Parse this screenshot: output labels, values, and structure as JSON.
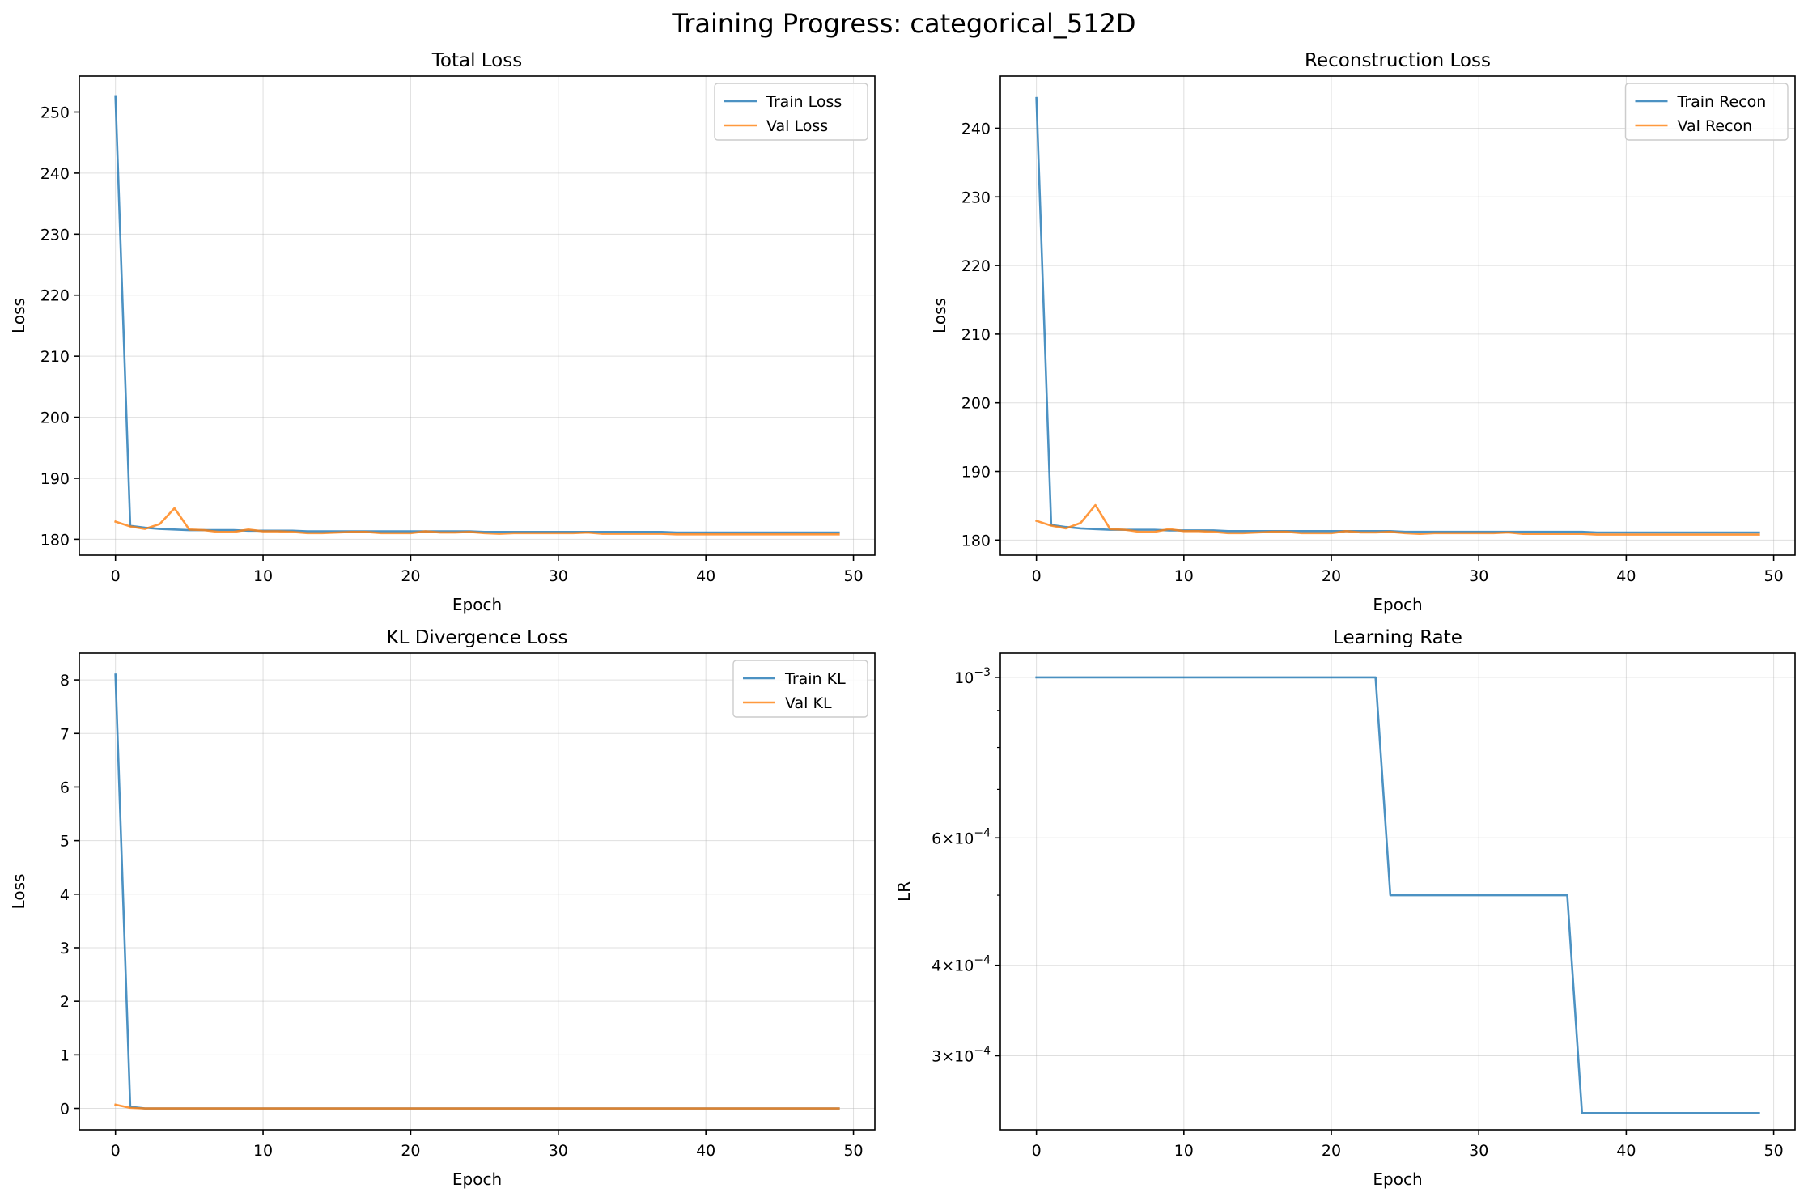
{
  "figure": {
    "title": "Training Progress: categorical_512D"
  },
  "colors": {
    "train": "#1f77b4",
    "val": "#ff7f0e",
    "grid": "#b0b0b0",
    "axis": "#000000"
  },
  "chart_data": [
    {
      "id": "total",
      "type": "line",
      "title": "Total Loss",
      "xlabel": "Epoch",
      "ylabel": "Loss",
      "xlim": [
        -2.45,
        51.45
      ],
      "ylim": [
        177.4,
        255.9
      ],
      "xticks": [
        0,
        10,
        20,
        30,
        40,
        50
      ],
      "yticks": [
        180,
        190,
        200,
        210,
        220,
        230,
        240,
        250
      ],
      "grid": true,
      "legend": "top-right",
      "series": [
        {
          "name": "Train Loss",
          "color": "#1f77b4",
          "x": [
            0,
            1,
            2,
            3,
            4,
            5,
            6,
            7,
            8,
            9,
            10,
            11,
            12,
            13,
            14,
            15,
            16,
            17,
            18,
            19,
            20,
            21,
            22,
            23,
            24,
            25,
            26,
            27,
            28,
            29,
            30,
            31,
            32,
            33,
            34,
            35,
            36,
            37,
            38,
            39,
            40,
            41,
            42,
            43,
            44,
            45,
            46,
            47,
            48,
            49
          ],
          "y": [
            252.6,
            182.2,
            181.9,
            181.7,
            181.6,
            181.5,
            181.5,
            181.5,
            181.5,
            181.4,
            181.4,
            181.4,
            181.4,
            181.3,
            181.3,
            181.3,
            181.3,
            181.3,
            181.3,
            181.3,
            181.3,
            181.3,
            181.3,
            181.3,
            181.3,
            181.2,
            181.2,
            181.2,
            181.2,
            181.2,
            181.2,
            181.2,
            181.2,
            181.2,
            181.2,
            181.2,
            181.2,
            181.2,
            181.1,
            181.1,
            181.1,
            181.1,
            181.1,
            181.1,
            181.1,
            181.1,
            181.1,
            181.1,
            181.1,
            181.1
          ]
        },
        {
          "name": "Val Loss",
          "color": "#ff7f0e",
          "x": [
            0,
            1,
            2,
            3,
            4,
            5,
            6,
            7,
            8,
            9,
            10,
            11,
            12,
            13,
            14,
            15,
            16,
            17,
            18,
            19,
            20,
            21,
            22,
            23,
            24,
            25,
            26,
            27,
            28,
            29,
            30,
            31,
            32,
            33,
            34,
            35,
            36,
            37,
            38,
            39,
            40,
            41,
            42,
            43,
            44,
            45,
            46,
            47,
            48,
            49
          ],
          "y": [
            182.9,
            182.1,
            181.7,
            182.5,
            185.1,
            181.6,
            181.5,
            181.2,
            181.2,
            181.6,
            181.3,
            181.3,
            181.2,
            181.0,
            181.0,
            181.1,
            181.2,
            181.2,
            181.0,
            181.0,
            181.0,
            181.3,
            181.1,
            181.1,
            181.2,
            181.0,
            180.9,
            181.0,
            181.0,
            181.0,
            181.0,
            181.0,
            181.1,
            180.9,
            180.9,
            180.9,
            180.9,
            180.9,
            180.8,
            180.8,
            180.8,
            180.8,
            180.8,
            180.8,
            180.8,
            180.8,
            180.8,
            180.8,
            180.8,
            180.8
          ]
        }
      ]
    },
    {
      "id": "recon",
      "type": "line",
      "title": "Reconstruction Loss",
      "xlabel": "Epoch",
      "ylabel": "Loss",
      "xlim": [
        -2.45,
        51.45
      ],
      "ylim": [
        177.8,
        247.6
      ],
      "xticks": [
        0,
        10,
        20,
        30,
        40,
        50
      ],
      "yticks": [
        180,
        190,
        200,
        210,
        220,
        230,
        240
      ],
      "grid": true,
      "legend": "top-right",
      "series": [
        {
          "name": "Train Recon",
          "color": "#1f77b4",
          "x": [
            0,
            1,
            2,
            3,
            4,
            5,
            6,
            7,
            8,
            9,
            10,
            11,
            12,
            13,
            14,
            15,
            16,
            17,
            18,
            19,
            20,
            21,
            22,
            23,
            24,
            25,
            26,
            27,
            28,
            29,
            30,
            31,
            32,
            33,
            34,
            35,
            36,
            37,
            38,
            39,
            40,
            41,
            42,
            43,
            44,
            45,
            46,
            47,
            48,
            49
          ],
          "y": [
            244.4,
            182.2,
            181.9,
            181.7,
            181.6,
            181.5,
            181.5,
            181.5,
            181.5,
            181.4,
            181.4,
            181.4,
            181.4,
            181.3,
            181.3,
            181.3,
            181.3,
            181.3,
            181.3,
            181.3,
            181.3,
            181.3,
            181.3,
            181.3,
            181.3,
            181.2,
            181.2,
            181.2,
            181.2,
            181.2,
            181.2,
            181.2,
            181.2,
            181.2,
            181.2,
            181.2,
            181.2,
            181.2,
            181.1,
            181.1,
            181.1,
            181.1,
            181.1,
            181.1,
            181.1,
            181.1,
            181.1,
            181.1,
            181.1,
            181.1
          ]
        },
        {
          "name": "Val Recon",
          "color": "#ff7f0e",
          "x": [
            0,
            1,
            2,
            3,
            4,
            5,
            6,
            7,
            8,
            9,
            10,
            11,
            12,
            13,
            14,
            15,
            16,
            17,
            18,
            19,
            20,
            21,
            22,
            23,
            24,
            25,
            26,
            27,
            28,
            29,
            30,
            31,
            32,
            33,
            34,
            35,
            36,
            37,
            38,
            39,
            40,
            41,
            42,
            43,
            44,
            45,
            46,
            47,
            48,
            49
          ],
          "y": [
            182.8,
            182.1,
            181.7,
            182.5,
            185.1,
            181.6,
            181.5,
            181.2,
            181.2,
            181.6,
            181.3,
            181.3,
            181.2,
            181.0,
            181.0,
            181.1,
            181.2,
            181.2,
            181.0,
            181.0,
            181.0,
            181.3,
            181.1,
            181.1,
            181.2,
            181.0,
            180.9,
            181.0,
            181.0,
            181.0,
            181.0,
            181.0,
            181.1,
            180.9,
            180.9,
            180.9,
            180.9,
            180.9,
            180.8,
            180.8,
            180.8,
            180.8,
            180.8,
            180.8,
            180.8,
            180.8,
            180.8,
            180.8,
            180.8,
            180.8
          ]
        }
      ]
    },
    {
      "id": "kl",
      "type": "line",
      "title": "KL Divergence Loss",
      "xlabel": "Epoch",
      "ylabel": "Loss",
      "xlim": [
        -2.45,
        51.45
      ],
      "ylim": [
        -0.4,
        8.5
      ],
      "xticks": [
        0,
        10,
        20,
        30,
        40,
        50
      ],
      "yticks": [
        0,
        1,
        2,
        3,
        4,
        5,
        6,
        7,
        8
      ],
      "grid": true,
      "legend": "top-right",
      "series": [
        {
          "name": "Train KL",
          "color": "#1f77b4",
          "x": [
            0,
            1,
            2,
            3,
            4,
            5,
            6,
            7,
            8,
            9,
            10,
            11,
            12,
            13,
            14,
            15,
            16,
            17,
            18,
            19,
            20,
            21,
            22,
            23,
            24,
            25,
            26,
            27,
            28,
            29,
            30,
            31,
            32,
            33,
            34,
            35,
            36,
            37,
            38,
            39,
            40,
            41,
            42,
            43,
            44,
            45,
            46,
            47,
            48,
            49
          ],
          "y": [
            8.1,
            0.03,
            0,
            0,
            0,
            0,
            0,
            0,
            0,
            0,
            0,
            0,
            0,
            0,
            0,
            0,
            0,
            0,
            0,
            0,
            0,
            0,
            0,
            0,
            0,
            0,
            0,
            0,
            0,
            0,
            0,
            0,
            0,
            0,
            0,
            0,
            0,
            0,
            0,
            0,
            0,
            0,
            0,
            0,
            0,
            0,
            0,
            0,
            0,
            0
          ]
        },
        {
          "name": "Val KL",
          "color": "#ff7f0e",
          "x": [
            0,
            1,
            2,
            3,
            4,
            5,
            6,
            7,
            8,
            9,
            10,
            11,
            12,
            13,
            14,
            15,
            16,
            17,
            18,
            19,
            20,
            21,
            22,
            23,
            24,
            25,
            26,
            27,
            28,
            29,
            30,
            31,
            32,
            33,
            34,
            35,
            36,
            37,
            38,
            39,
            40,
            41,
            42,
            43,
            44,
            45,
            46,
            47,
            48,
            49
          ],
          "y": [
            0.07,
            0.01,
            0,
            0,
            0,
            0,
            0,
            0,
            0,
            0,
            0,
            0,
            0,
            0,
            0,
            0,
            0,
            0,
            0,
            0,
            0,
            0,
            0,
            0,
            0,
            0,
            0,
            0,
            0,
            0,
            0,
            0,
            0,
            0,
            0,
            0,
            0,
            0,
            0,
            0,
            0,
            0,
            0,
            0,
            0,
            0,
            0,
            0,
            0,
            0
          ]
        }
      ]
    },
    {
      "id": "lr",
      "type": "line",
      "title": "Learning Rate",
      "xlabel": "Epoch",
      "ylabel": "LR",
      "xscale": "linear",
      "yscale": "log",
      "xlim": [
        -2.45,
        51.45
      ],
      "ylim": [
        0.000237,
        0.00108
      ],
      "xticks": [
        0,
        10,
        20,
        30,
        40,
        50
      ],
      "yticks": [
        0.001,
        0.0006,
        0.0004,
        0.0003
      ],
      "ytick_labels": [
        {
          "base": "10",
          "exp": "−3",
          "mant": ""
        },
        {
          "base": "10",
          "exp": "−4",
          "mant": "6"
        },
        {
          "base": "10",
          "exp": "−4",
          "mant": "4"
        },
        {
          "base": "10",
          "exp": "−4",
          "mant": "3"
        }
      ],
      "minor_yticks": [
        0.0005,
        0.0007,
        0.0008,
        0.0009
      ],
      "grid": true,
      "legend": "none",
      "series": [
        {
          "name": "",
          "color": "#1f77b4",
          "x": [
            0,
            1,
            2,
            3,
            4,
            5,
            6,
            7,
            8,
            9,
            10,
            11,
            12,
            13,
            14,
            15,
            16,
            17,
            18,
            19,
            20,
            21,
            22,
            23,
            24,
            25,
            26,
            27,
            28,
            29,
            30,
            31,
            32,
            33,
            34,
            35,
            36,
            37,
            38,
            39,
            40,
            41,
            42,
            43,
            44,
            45,
            46,
            47,
            48,
            49
          ],
          "y": [
            0.001,
            0.001,
            0.001,
            0.001,
            0.001,
            0.001,
            0.001,
            0.001,
            0.001,
            0.001,
            0.001,
            0.001,
            0.001,
            0.001,
            0.001,
            0.001,
            0.001,
            0.001,
            0.001,
            0.001,
            0.001,
            0.001,
            0.001,
            0.001,
            0.0005,
            0.0005,
            0.0005,
            0.0005,
            0.0005,
            0.0005,
            0.0005,
            0.0005,
            0.0005,
            0.0005,
            0.0005,
            0.0005,
            0.0005,
            0.00025,
            0.00025,
            0.00025,
            0.00025,
            0.00025,
            0.00025,
            0.00025,
            0.00025,
            0.00025,
            0.00025,
            0.00025,
            0.00025,
            0.00025
          ]
        }
      ]
    }
  ]
}
